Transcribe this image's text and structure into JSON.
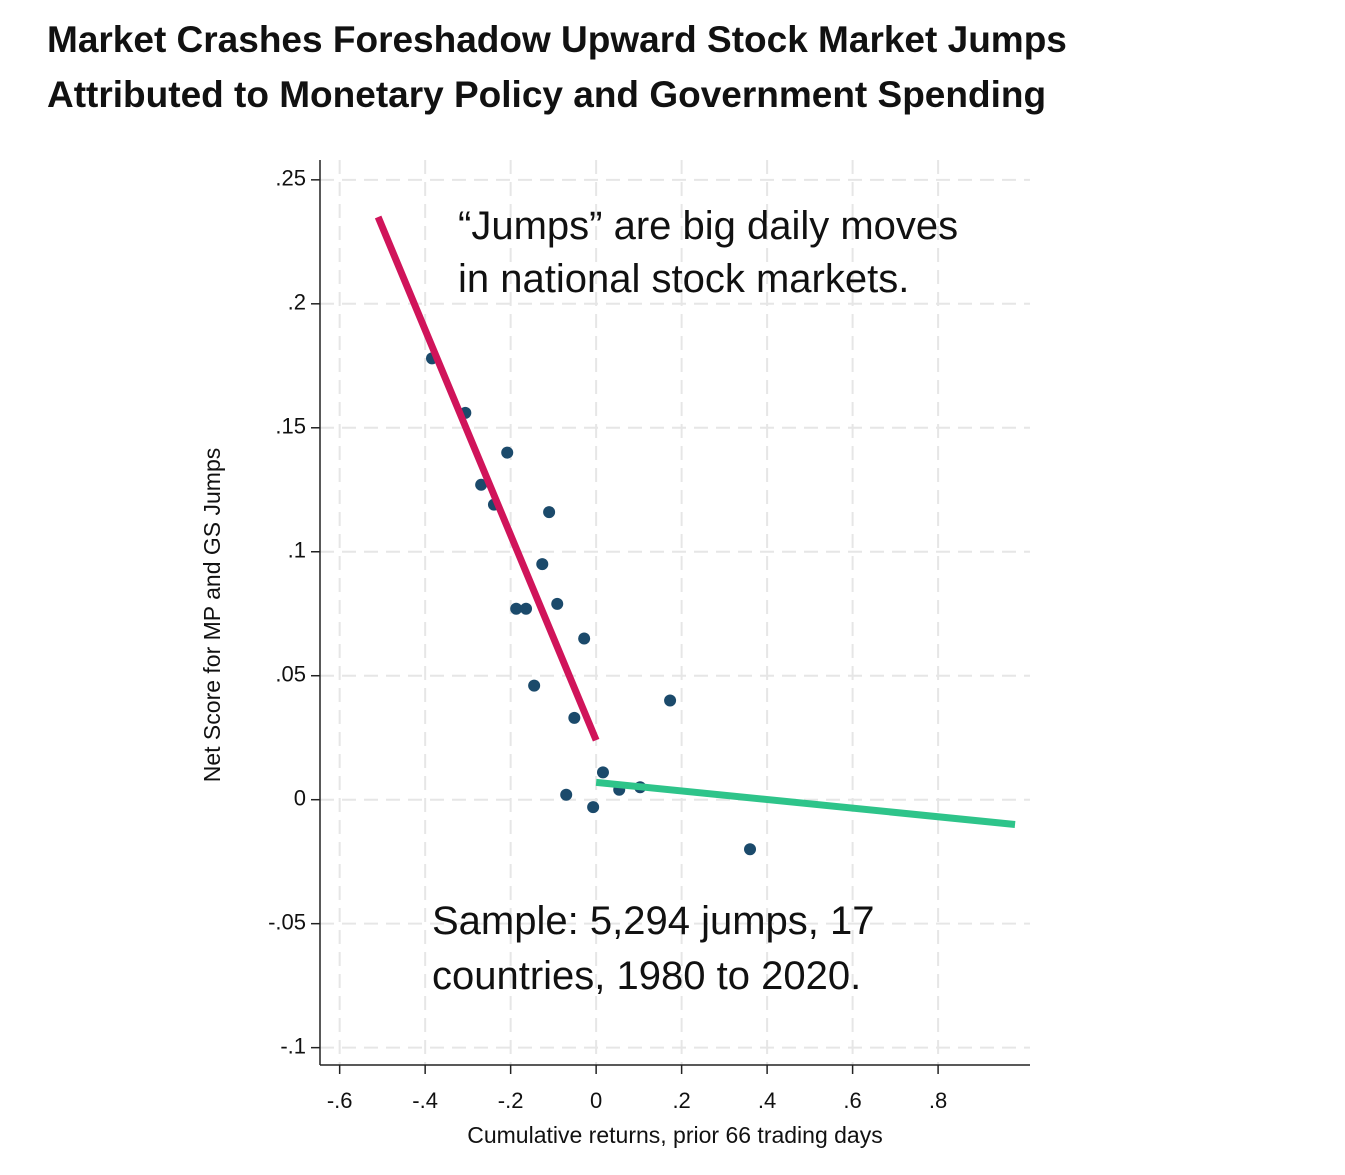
{
  "chart_data": {
    "type": "scatter",
    "title": [
      "Market Crashes Foreshadow Upward Stock Market Jumps",
      "Attributed to Monetary Policy and Government Spending"
    ],
    "x_label": "Cumulative returns, prior 66 trading days",
    "y_label": "Net Score for MP and GS Jumps",
    "annotations": [
      [
        "“Jumps” are big daily moves",
        "in national stock markets."
      ],
      [
        "Sample: 5,294 jumps, 17",
        "countries, 1980 to 2020."
      ]
    ],
    "xlim": [
      -0.646,
      1.015
    ],
    "ylim": [
      -0.107,
      0.258
    ],
    "xticks": [
      {
        "value": -0.6,
        "label": "-.6"
      },
      {
        "value": -0.4,
        "label": "-.4"
      },
      {
        "value": -0.2,
        "label": "-.2"
      },
      0,
      {
        "value": 0.2,
        "label": ".2"
      },
      {
        "value": 0.4,
        "label": ".4"
      },
      {
        "value": 0.6,
        "label": ".6"
      },
      {
        "value": 0.8,
        "label": ".8"
      }
    ],
    "yticks": [
      {
        "value": -0.1,
        "label": "-.1"
      },
      {
        "value": -0.05,
        "label": "-.05"
      },
      0,
      {
        "value": 0.05,
        "label": ".05"
      },
      {
        "value": 0.1,
        "label": ".1"
      },
      {
        "value": 0.15,
        "label": ".15"
      },
      {
        "value": 0.2,
        "label": ".2"
      },
      {
        "value": 0.25,
        "label": ".25"
      }
    ],
    "grid": true,
    "series": [
      {
        "type": "scatter",
        "color": "#1b4a6b",
        "x": [
          -0.384,
          -0.306,
          -0.269,
          -0.239,
          -0.208,
          -0.11,
          -0.126,
          -0.187,
          -0.164,
          -0.091,
          -0.028,
          -0.145,
          -0.051,
          0.173,
          0.016,
          -0.07,
          -0.007,
          0.054,
          0.103,
          0.36
        ],
        "values": [
          0.178,
          0.156,
          0.127,
          0.119,
          0.14,
          0.116,
          0.095,
          0.077,
          0.077,
          0.079,
          0.065,
          0.046,
          0.033,
          0.04,
          0.011,
          0.002,
          -0.003,
          0.004,
          0.005,
          -0.02
        ]
      },
      {
        "type": "line",
        "color": "#d0145a",
        "x": [
          -0.51,
          0
        ],
        "values": [
          0.235,
          0.024
        ]
      },
      {
        "type": "line",
        "color": "#2ec48a",
        "x": [
          0,
          0.98
        ],
        "values": [
          0.007,
          -0.01
        ]
      }
    ]
  }
}
